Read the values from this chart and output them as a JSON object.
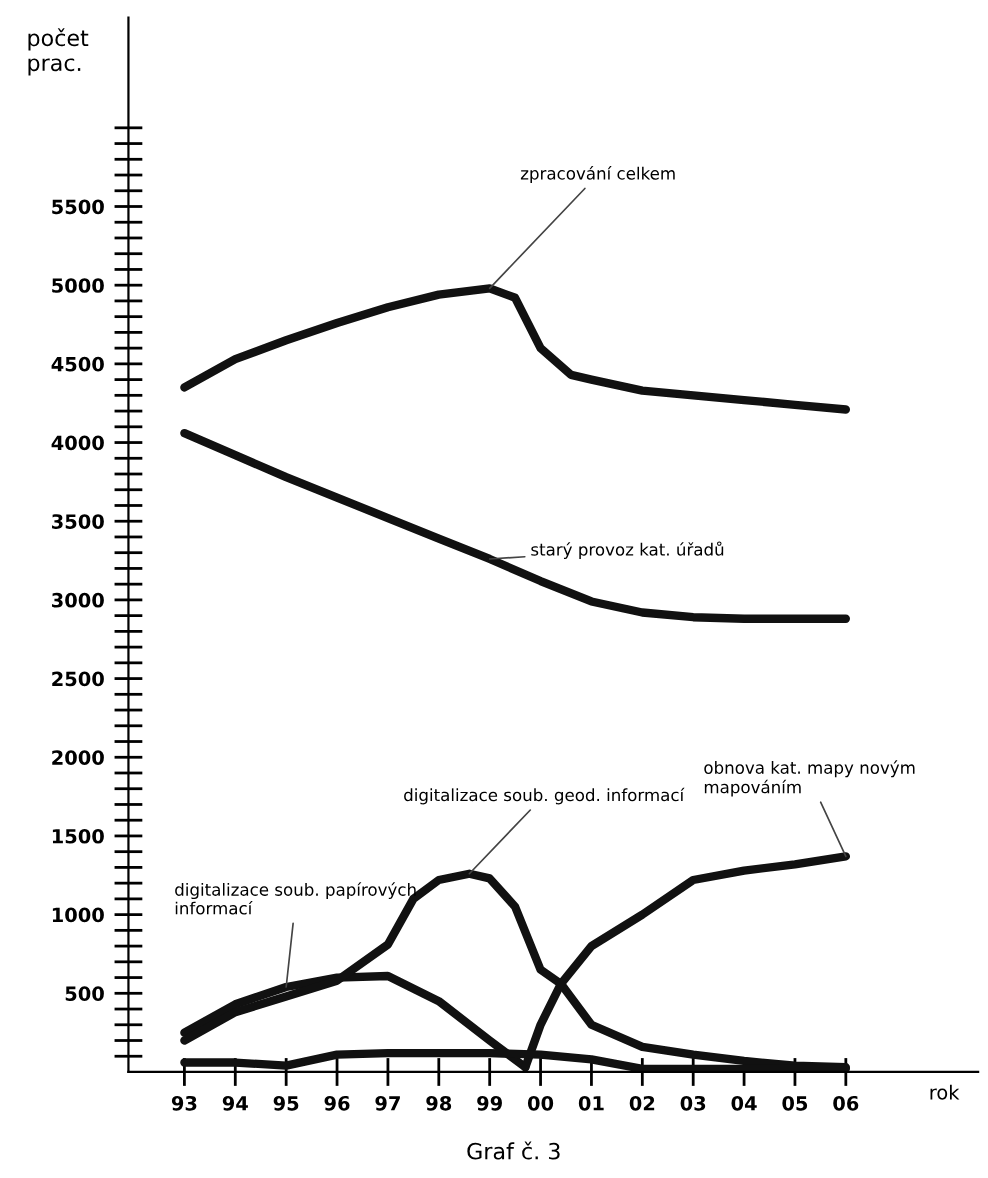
{
  "chart_data": {
    "type": "line",
    "ylabel": "počet\nprac.",
    "xlabel": "rok",
    "xlim": [
      1991.9,
      2008.6
    ],
    "ylim": [
      0,
      6700
    ],
    "xticks": [
      {
        "value": 1993,
        "label": "93"
      },
      {
        "value": 1994,
        "label": "94"
      },
      {
        "value": 1995,
        "label": "95"
      },
      {
        "value": 1996,
        "label": "96"
      },
      {
        "value": 1997,
        "label": "97"
      },
      {
        "value": 1998,
        "label": "98"
      },
      {
        "value": 1999,
        "label": "99"
      },
      {
        "value": 2000,
        "label": "00"
      },
      {
        "value": 2001,
        "label": "01"
      },
      {
        "value": 2002,
        "label": "02"
      },
      {
        "value": 2003,
        "label": "03"
      },
      {
        "value": 2004,
        "label": "04"
      },
      {
        "value": 2005,
        "label": "05"
      },
      {
        "value": 2006,
        "label": "06"
      }
    ],
    "yticks": [
      {
        "value": 100,
        "label": null
      },
      {
        "value": 200,
        "label": null
      },
      {
        "value": 300,
        "label": null
      },
      {
        "value": 400,
        "label": null
      },
      500,
      {
        "value": 600,
        "label": null
      },
      {
        "value": 700,
        "label": null
      },
      {
        "value": 800,
        "label": null
      },
      {
        "value": 900,
        "label": null
      },
      1000,
      {
        "value": 1100,
        "label": null
      },
      {
        "value": 1200,
        "label": null
      },
      {
        "value": 1300,
        "label": null
      },
      {
        "value": 1400,
        "label": null
      },
      1500,
      {
        "value": 1600,
        "label": null
      },
      {
        "value": 1700,
        "label": null
      },
      {
        "value": 1800,
        "label": null
      },
      {
        "value": 1900,
        "label": null
      },
      2000,
      {
        "value": 2100,
        "label": null
      },
      {
        "value": 2200,
        "label": null
      },
      {
        "value": 2300,
        "label": null
      },
      {
        "value": 2400,
        "label": null
      },
      2500,
      {
        "value": 2600,
        "label": null
      },
      {
        "value": 2700,
        "label": null
      },
      {
        "value": 2800,
        "label": null
      },
      {
        "value": 2900,
        "label": null
      },
      3000,
      {
        "value": 3100,
        "label": null
      },
      {
        "value": 3200,
        "label": null
      },
      {
        "value": 3300,
        "label": null
      },
      {
        "value": 3400,
        "label": null
      },
      3500,
      {
        "value": 3600,
        "label": null
      },
      {
        "value": 3700,
        "label": null
      },
      {
        "value": 3800,
        "label": null
      },
      {
        "value": 3900,
        "label": null
      },
      4000,
      {
        "value": 4100,
        "label": null
      },
      {
        "value": 4200,
        "label": null
      },
      {
        "value": 4300,
        "label": null
      },
      {
        "value": 4400,
        "label": null
      },
      4500,
      {
        "value": 4600,
        "label": null
      },
      {
        "value": 4700,
        "label": null
      },
      {
        "value": 4800,
        "label": null
      },
      {
        "value": 4900,
        "label": null
      },
      5000,
      {
        "value": 5100,
        "label": null
      },
      {
        "value": 5200,
        "label": null
      },
      {
        "value": 5300,
        "label": null
      },
      {
        "value": 5400,
        "label": null
      },
      5500,
      {
        "value": 5600,
        "label": null
      },
      {
        "value": 5700,
        "label": null
      },
      {
        "value": 5800,
        "label": null
      },
      {
        "value": 5900,
        "label": null
      },
      {
        "value": 6000,
        "label": null
      }
    ],
    "grid": false,
    "legend": false,
    "marker": "none",
    "line_style": "solid",
    "series": [
      {
        "name": "zpracování celkem",
        "color": "#111111",
        "x": [
          1993,
          1994,
          1995,
          1996,
          1997,
          1998,
          1999,
          1999.5,
          2000,
          2000.6,
          2001,
          2002,
          2003,
          2004,
          2005,
          2006
        ],
        "values": [
          4350,
          4530,
          4650,
          4760,
          4860,
          4940,
          4980,
          4920,
          4600,
          4430,
          4400,
          4330,
          4300,
          4270,
          4240,
          4210
        ]
      },
      {
        "name": "starý provoz kat. úřadů",
        "color": "#111111",
        "x": [
          1993,
          1994,
          1995,
          1996,
          1997,
          1998,
          1999,
          2000,
          2001,
          2002,
          2003,
          2004,
          2005,
          2006
        ],
        "values": [
          4060,
          3920,
          3780,
          3650,
          3520,
          3390,
          3260,
          3120,
          2990,
          2920,
          2890,
          2880,
          2880,
          2880
        ]
      },
      {
        "name": "digitalizace soub. papírových\ninformací",
        "color": "#111111",
        "x": [
          1993,
          1994,
          1995,
          1996,
          1997,
          1998,
          1999,
          1999.7
        ],
        "values": [
          250,
          430,
          540,
          600,
          610,
          450,
          200,
          30
        ]
      },
      {
        "name": "digitalizace soub. geod. informací",
        "color": "#111111",
        "x": [
          1993,
          1994,
          1995,
          1996,
          1997,
          1997.5,
          1998,
          1998.6,
          1999,
          1999.5,
          2000,
          2000.4,
          2001,
          2002,
          2003,
          2004,
          2005,
          2006
        ],
        "values": [
          200,
          380,
          480,
          580,
          810,
          1100,
          1220,
          1260,
          1230,
          1050,
          650,
          560,
          300,
          160,
          110,
          70,
          40,
          30
        ]
      },
      {
        "name": "obnova kat. mapy novým\nmapováním",
        "color": "#111111",
        "x": [
          1999.7,
          2000,
          2000.4,
          2001,
          2002,
          2003,
          2004,
          2005,
          2006
        ],
        "values": [
          30,
          300,
          560,
          800,
          1000,
          1220,
          1280,
          1320,
          1370
        ]
      },
      {
        "color": "#111111",
        "x": [
          1993,
          1994,
          1995,
          1996,
          1997,
          1998,
          1999,
          2000,
          2001,
          2002,
          2003,
          2004,
          2005,
          2006
        ],
        "values": [
          60,
          60,
          40,
          110,
          120,
          120,
          120,
          110,
          80,
          20,
          20,
          20,
          20,
          20
        ]
      }
    ],
    "annotations": [
      "Graf č. 3"
    ]
  }
}
